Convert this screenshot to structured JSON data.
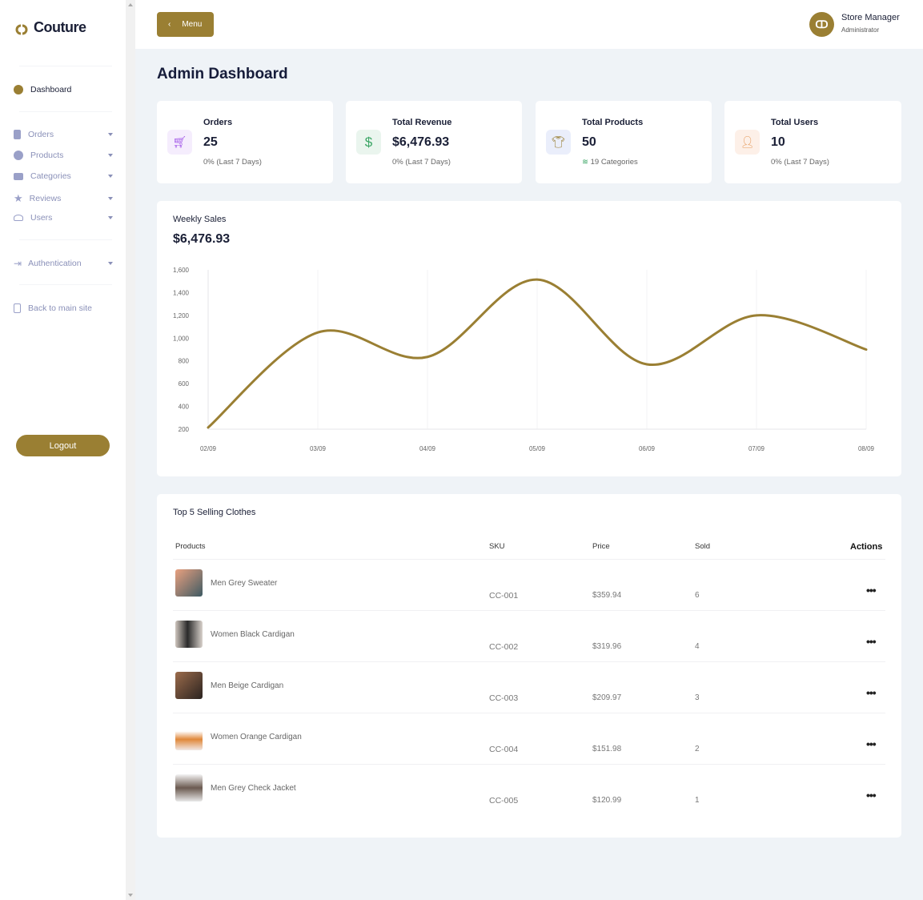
{
  "brand": {
    "name": "Couture",
    "accent": "#9a7f33"
  },
  "sidebar": {
    "items": [
      {
        "label": "Dashboard",
        "icon": "pie-chart-icon"
      },
      {
        "label": "Orders",
        "icon": "file-icon"
      },
      {
        "label": "Products",
        "icon": "p-circle-icon"
      },
      {
        "label": "Categories",
        "icon": "layers-icon"
      },
      {
        "label": "Reviews",
        "icon": "star-icon"
      },
      {
        "label": "Users",
        "icon": "users-icon"
      },
      {
        "label": "Authentication",
        "icon": "login-icon"
      },
      {
        "label": "Back to main site",
        "icon": "document-icon"
      }
    ],
    "logout": "Logout"
  },
  "header": {
    "menu": "Menu",
    "user_name": "Store Manager",
    "user_role": "Administrator"
  },
  "page_title": "Admin Dashboard",
  "stats": [
    {
      "label": "Orders",
      "value": "25",
      "sub": "0% (Last 7 Days)",
      "icon": "cart-icon"
    },
    {
      "label": "Total Revenue",
      "value": "$6,476.93",
      "sub": "0% (Last 7 Days)",
      "icon": "dollar-icon"
    },
    {
      "label": "Total Products",
      "value": "50",
      "sub": "19 Categories",
      "icon": "shirt-icon"
    },
    {
      "label": "Total Users",
      "value": "10",
      "sub": "0% (Last 7 Days)",
      "icon": "user-icon"
    }
  ],
  "sales": {
    "title": "Weekly Sales",
    "total": "$6,476.93"
  },
  "chart_data": {
    "type": "line",
    "x": [
      "02/09",
      "03/09",
      "04/09",
      "05/09",
      "06/09",
      "07/09",
      "08/09"
    ],
    "values": [
      215,
      1050,
      835,
      1515,
      770,
      1200,
      900
    ],
    "ylim": [
      200,
      1600
    ],
    "yticks": [
      "200",
      "400",
      "600",
      "800",
      "1,000",
      "1,200",
      "1,400",
      "1,600"
    ],
    "grid": "vertical",
    "smooth": true,
    "color": "#9a7f33"
  },
  "top": {
    "title": "Top 5 Selling Clothes",
    "columns": [
      "Products",
      "SKU",
      "Price",
      "Sold",
      "Actions"
    ],
    "rows": [
      {
        "name": "Men Grey Sweater",
        "sku": "CC-001",
        "price": "$359.94",
        "sold": "6"
      },
      {
        "name": "Women Black Cardigan",
        "sku": "CC-002",
        "price": "$319.96",
        "sold": "4"
      },
      {
        "name": "Men Beige Cardigan",
        "sku": "CC-003",
        "price": "$209.97",
        "sold": "3"
      },
      {
        "name": "Women Orange Cardigan",
        "sku": "CC-004",
        "price": "$151.98",
        "sold": "2"
      },
      {
        "name": "Men Grey Check Jacket",
        "sku": "CC-005",
        "price": "$120.99",
        "sold": "1"
      }
    ]
  }
}
